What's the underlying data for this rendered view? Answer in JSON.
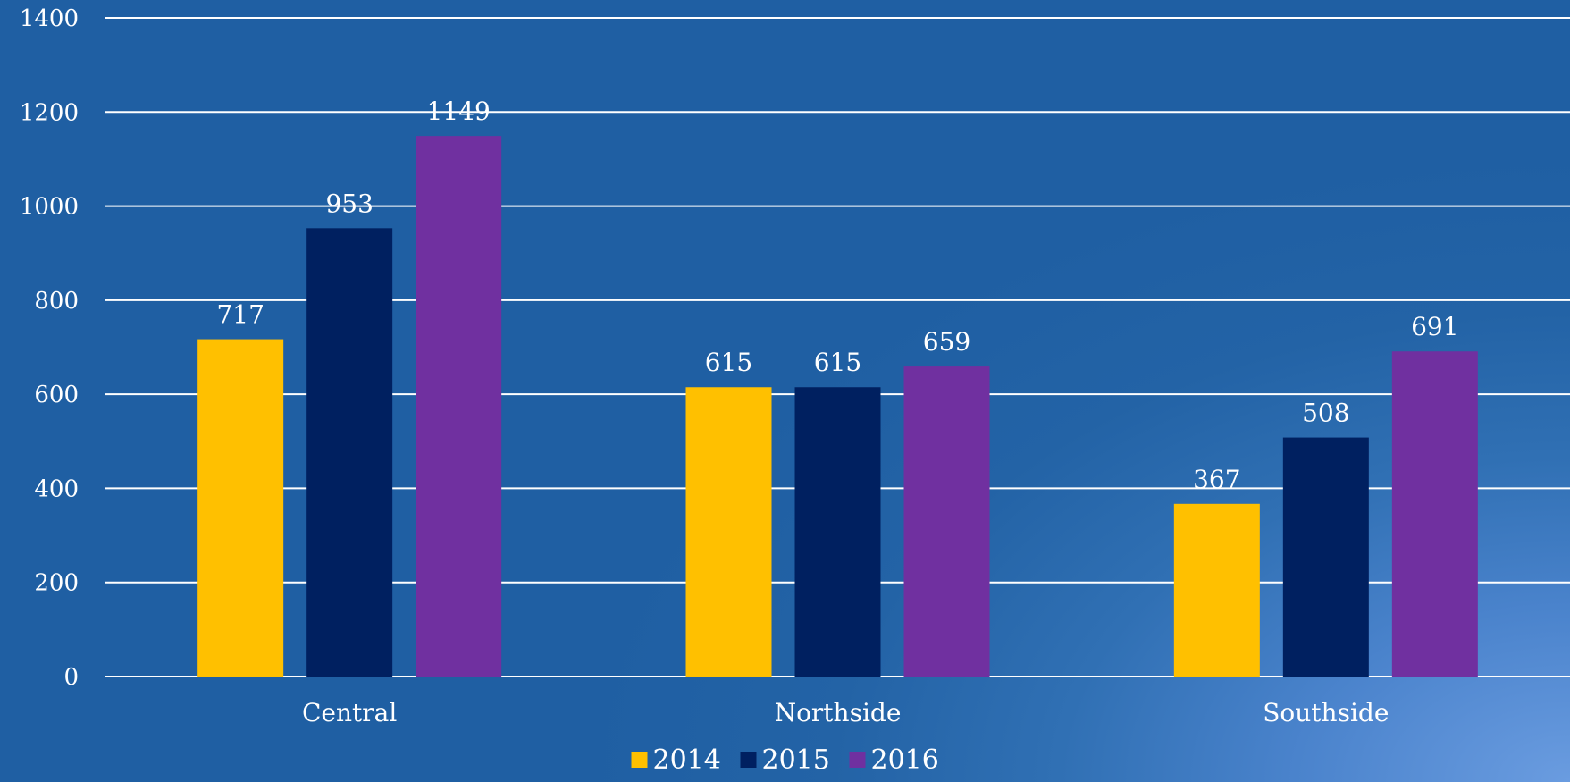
{
  "chart_data": {
    "type": "bar",
    "title": "",
    "xlabel": "",
    "ylabel": "",
    "categories": [
      "Central",
      "Northside",
      "Southside"
    ],
    "series": [
      {
        "name": "2014",
        "color": "#FFC000",
        "values": [
          717,
          615,
          367
        ]
      },
      {
        "name": "2015",
        "color": "#002060",
        "values": [
          953,
          615,
          508
        ]
      },
      {
        "name": "2016",
        "color": "#7030A0",
        "values": [
          1149,
          659,
          691
        ]
      }
    ],
    "ylim": [
      0,
      1400
    ],
    "yticks": [
      0,
      200,
      400,
      600,
      800,
      1000,
      1200,
      1400
    ],
    "grid": true,
    "data_labels": true,
    "legend": "bottom-center"
  }
}
